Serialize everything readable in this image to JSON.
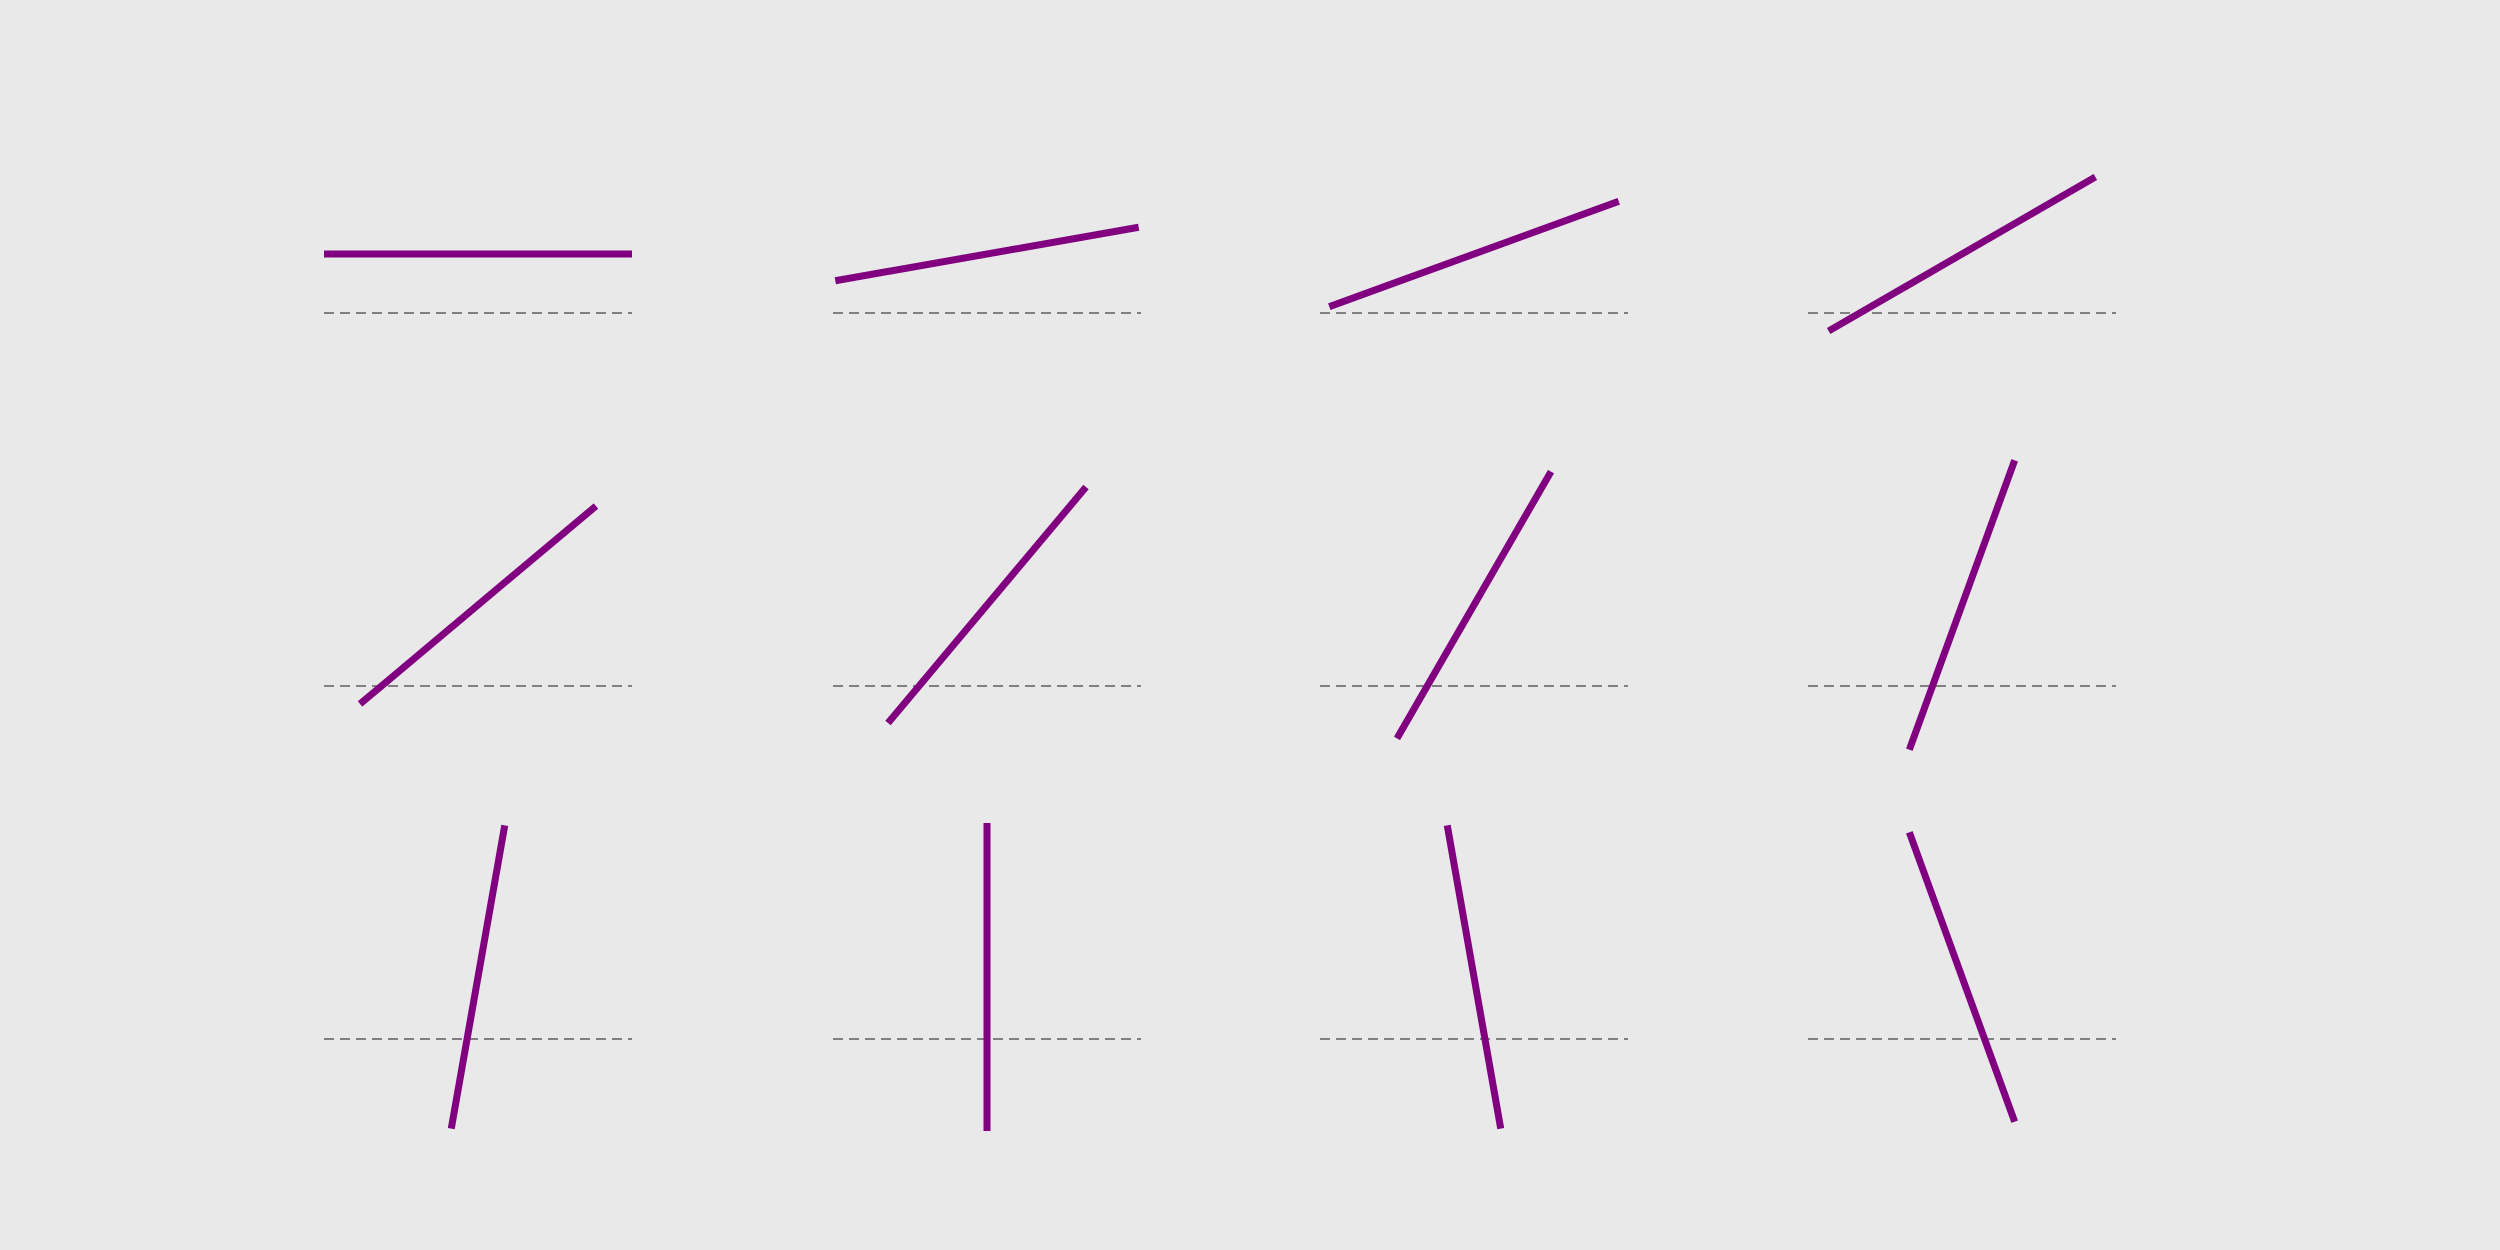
{
  "colors": {
    "background": "#e9e9e9",
    "segment": "#800080",
    "reference": "#808080"
  },
  "grid": {
    "rows": 3,
    "cols": 4
  },
  "panels": [
    {
      "angle_deg": 0
    },
    {
      "angle_deg": 10
    },
    {
      "angle_deg": 20
    },
    {
      "angle_deg": 30
    },
    {
      "angle_deg": 40
    },
    {
      "angle_deg": 50
    },
    {
      "angle_deg": 60
    },
    {
      "angle_deg": 70
    },
    {
      "angle_deg": 80
    },
    {
      "angle_deg": 90
    },
    {
      "angle_deg": 100
    },
    {
      "angle_deg": 110
    }
  ]
}
